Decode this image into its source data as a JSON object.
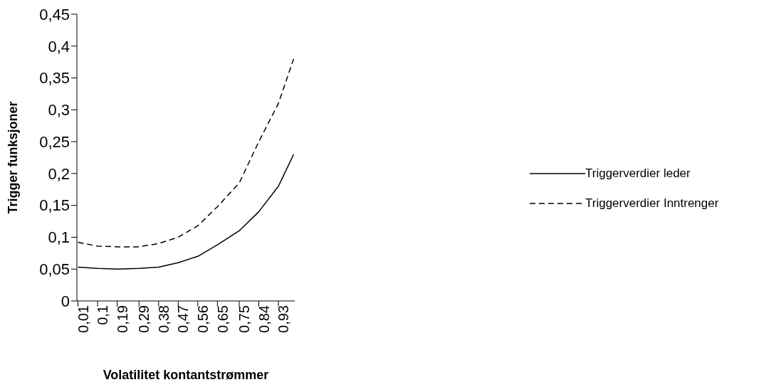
{
  "chart_data": {
    "type": "line",
    "xlabel": "Volatilitet kontantstrømmer",
    "ylabel": "Trigger funksjoner",
    "x": [
      0.01,
      0.1,
      0.19,
      0.29,
      0.38,
      0.47,
      0.56,
      0.65,
      0.75,
      0.84,
      0.93,
      1.0
    ],
    "series": [
      {
        "name": "Triggerverdier leder",
        "color": "#000000",
        "line_style": "solid",
        "values": [
          0.053,
          0.051,
          0.05,
          0.051,
          0.053,
          0.06,
          0.07,
          0.088,
          0.11,
          0.14,
          0.18,
          0.23
        ]
      },
      {
        "name": "Triggerverdier Inntrenger",
        "color": "#000000",
        "line_style": "dashed",
        "values": [
          0.092,
          0.086,
          0.085,
          0.085,
          0.09,
          0.1,
          0.118,
          0.148,
          0.185,
          0.25,
          0.31,
          0.38
        ]
      }
    ],
    "xlim": [
      0.005,
      1.005
    ],
    "xticks": [
      {
        "value": 0.01,
        "label": "0,01"
      },
      {
        "value": 0.1,
        "label": "0,1"
      },
      {
        "value": 0.19,
        "label": "0,19"
      },
      {
        "value": 0.29,
        "label": "0,29"
      },
      {
        "value": 0.38,
        "label": "0,38"
      },
      {
        "value": 0.47,
        "label": "0,47"
      },
      {
        "value": 0.56,
        "label": "0,56"
      },
      {
        "value": 0.65,
        "label": "0,65"
      },
      {
        "value": 0.75,
        "label": "0,75"
      },
      {
        "value": 0.84,
        "label": "0,84"
      },
      {
        "value": 0.93,
        "label": "0,93"
      }
    ],
    "ylim": [
      0,
      0.45
    ],
    "yticks": [
      {
        "value": 0,
        "label": "0"
      },
      {
        "value": 0.05,
        "label": "0,05"
      },
      {
        "value": 0.1,
        "label": "0,1"
      },
      {
        "value": 0.15,
        "label": "0,15"
      },
      {
        "value": 0.2,
        "label": "0,2"
      },
      {
        "value": 0.25,
        "label": "0,25"
      },
      {
        "value": 0.3,
        "label": "0,3"
      },
      {
        "value": 0.35,
        "label": "0,35"
      },
      {
        "value": 0.4,
        "label": "0,4"
      },
      {
        "value": 0.45,
        "label": "0,45"
      }
    ],
    "grid": false,
    "legend": "right",
    "marker": "none"
  }
}
